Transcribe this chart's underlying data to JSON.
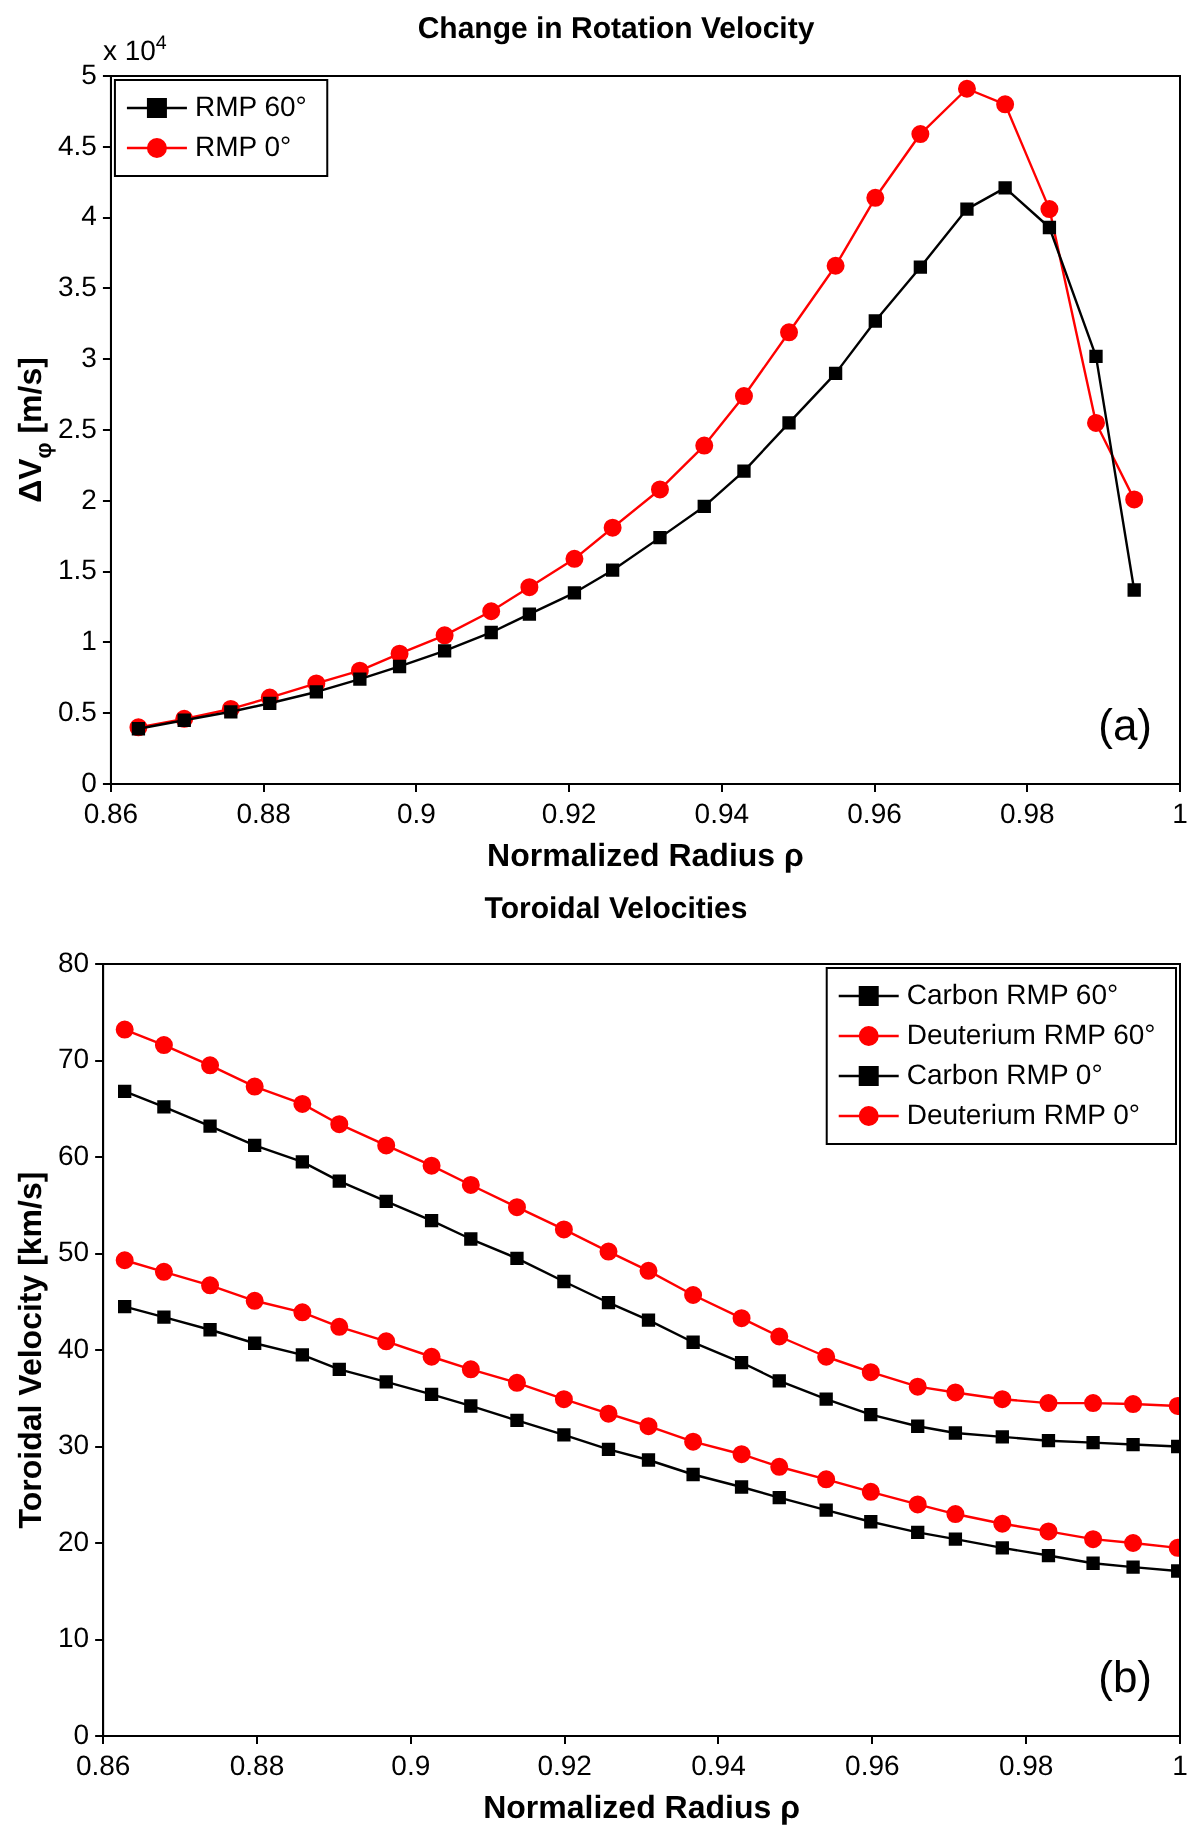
{
  "chart_data": [
    {
      "type": "line",
      "title": "Change in Rotation Velocity",
      "xlabel": "Normalized Radius ρ",
      "ylabel": "ΔV$_{φ}$ [m/s]",
      "xlim": [
        0.86,
        1
      ],
      "xticks": [
        0.86,
        0.88,
        0.9,
        0.92,
        0.94,
        0.96,
        0.98,
        1
      ],
      "ylim": [
        0,
        5
      ],
      "yticks": [
        0,
        0.5,
        1,
        1.5,
        2,
        2.5,
        3,
        3.5,
        4,
        4.5,
        5
      ],
      "x": [
        0.8636,
        0.8696,
        0.8757,
        0.8808,
        0.8869,
        0.8926,
        0.8978,
        0.9037,
        0.9098,
        0.9148,
        0.9207,
        0.9257,
        0.9319,
        0.9377,
        0.9429,
        0.9488,
        0.9549,
        0.9601,
        0.966,
        0.9721,
        0.9771,
        0.9829,
        0.989,
        0.994
      ],
      "series": [
        {
          "name": "RMP 60°",
          "color": "#000000",
          "marker": "square",
          "values": [
            0.39,
            0.45,
            0.51,
            0.57,
            0.65,
            0.74,
            0.83,
            0.94,
            1.07,
            1.2,
            1.35,
            1.51,
            1.74,
            1.96,
            2.21,
            2.55,
            2.9,
            3.27,
            3.65,
            4.06,
            4.21,
            3.93,
            3.02,
            1.37
          ]
        },
        {
          "name": "RMP 0°",
          "color": "#ff0000",
          "marker": "circle",
          "values": [
            0.4,
            0.46,
            0.53,
            0.61,
            0.71,
            0.8,
            0.92,
            1.05,
            1.22,
            1.39,
            1.59,
            1.81,
            2.08,
            2.39,
            2.74,
            3.19,
            3.66,
            4.14,
            4.59,
            4.91,
            4.8,
            4.06,
            2.55,
            2.01
          ]
        }
      ],
      "legend": "top left",
      "grid": false,
      "annotations": [
        "(a)",
        "x 10$^{4}$"
      ]
    },
    {
      "type": "line",
      "title": "Toroidal Velocities",
      "xlabel": "Normalized Radius ρ",
      "ylabel": "Toroidal Velocity [km/s]",
      "xlim": [
        0.86,
        1
      ],
      "xticks": [
        0.86,
        0.88,
        0.9,
        0.92,
        0.94,
        0.96,
        0.98,
        1
      ],
      "ylim": [
        0,
        80
      ],
      "yticks": [
        0,
        10,
        20,
        30,
        40,
        50,
        60,
        70,
        80
      ],
      "x": [
        0.8628,
        0.8679,
        0.8739,
        0.8797,
        0.8859,
        0.8907,
        0.8968,
        0.9027,
        0.9078,
        0.9138,
        0.9199,
        0.9257,
        0.9309,
        0.9367,
        0.943,
        0.9479,
        0.954,
        0.9598,
        0.9659,
        0.9708,
        0.9769,
        0.9829,
        0.9887,
        0.9939,
        0.9997
      ],
      "series": [
        {
          "name": "Carbon RMP 60°",
          "color": "#000000",
          "marker": "square",
          "values": [
            44.5,
            43.4,
            42.1,
            40.7,
            39.5,
            38.0,
            36.7,
            35.4,
            34.2,
            32.7,
            31.2,
            29.7,
            28.6,
            27.1,
            25.8,
            24.7,
            23.4,
            22.2,
            21.1,
            20.4,
            19.5,
            18.7,
            17.9,
            17.5,
            17.1
          ]
        },
        {
          "name": "Deuterium RMP 60°",
          "color": "#ff0000",
          "marker": "circle",
          "values": [
            49.3,
            48.1,
            46.7,
            45.1,
            43.9,
            42.4,
            40.9,
            39.3,
            38.0,
            36.6,
            34.9,
            33.4,
            32.1,
            30.5,
            29.2,
            27.9,
            26.6,
            25.3,
            24.0,
            23.0,
            22.0,
            21.2,
            20.4,
            20.0,
            19.5
          ]
        },
        {
          "name": "Carbon RMP 0°",
          "color": "#000000",
          "marker": "square",
          "values": [
            66.8,
            65.2,
            63.2,
            61.2,
            59.5,
            57.5,
            55.4,
            53.4,
            51.5,
            49.5,
            47.1,
            44.9,
            43.1,
            40.8,
            38.7,
            36.8,
            34.9,
            33.3,
            32.1,
            31.4,
            31.0,
            30.6,
            30.4,
            30.2,
            30.0
          ]
        },
        {
          "name": "Deuterium RMP 0°",
          "color": "#ff0000",
          "marker": "circle",
          "values": [
            73.2,
            71.6,
            69.5,
            67.3,
            65.5,
            63.4,
            61.2,
            59.1,
            57.1,
            54.8,
            52.5,
            50.2,
            48.2,
            45.7,
            43.3,
            41.4,
            39.3,
            37.7,
            36.2,
            35.6,
            34.9,
            34.5,
            34.5,
            34.4,
            34.2
          ]
        }
      ],
      "legend": "top right",
      "grid": false,
      "annotations": [
        "(b)"
      ]
    }
  ]
}
